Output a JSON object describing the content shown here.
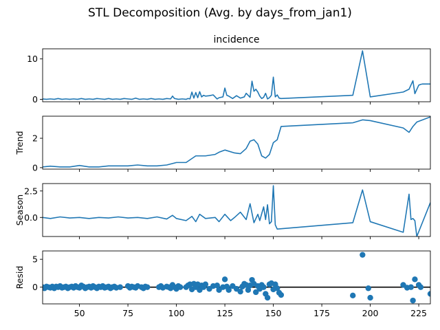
{
  "figure": {
    "suptitle": "STL Decomposition (Avg. by days_from_jan1)"
  },
  "colors": {
    "series": "#1f77b4",
    "axes": "#000000",
    "zero_line": "#000000"
  },
  "chart_data": [
    {
      "type": "line",
      "title": "incidence",
      "ylabel": "",
      "xlim": [
        31,
        231
      ],
      "ylim": [
        -0.6,
        12.5
      ],
      "yticks": [
        0,
        10
      ],
      "series": [
        {
          "x": [
            31,
            33,
            35,
            37,
            39,
            41,
            43,
            45,
            47,
            49,
            51,
            53,
            55,
            57,
            59,
            61,
            63,
            65,
            67,
            69,
            71,
            73,
            75,
            77,
            79,
            81,
            83,
            85,
            87,
            89,
            91,
            93,
            95,
            97,
            98,
            99,
            101,
            103,
            105,
            106,
            107,
            108,
            109,
            110,
            111,
            112,
            113,
            114,
            115,
            117,
            119,
            121,
            122,
            124,
            125,
            126,
            127,
            129,
            131,
            133,
            135,
            136,
            138,
            139,
            140,
            141,
            142,
            143,
            144,
            145,
            146,
            147,
            148,
            149,
            150,
            151,
            152,
            153,
            154,
            191,
            196,
            200,
            217,
            220,
            222,
            223,
            225,
            226,
            227,
            228,
            231
          ],
          "y": [
            0.1,
            0.0,
            0.1,
            0.0,
            0.2,
            0.0,
            0.1,
            0.0,
            0.1,
            0.0,
            0.2,
            0.0,
            0.1,
            0.0,
            0.2,
            0.1,
            0.0,
            0.2,
            0.0,
            0.1,
            0.0,
            0.2,
            0.1,
            0.0,
            0.3,
            0.0,
            0.1,
            0.0,
            0.2,
            0.0,
            0.1,
            0.0,
            0.2,
            0.1,
            0.8,
            0.2,
            0.0,
            0.1,
            0.0,
            0.2,
            0.1,
            1.8,
            0.3,
            1.7,
            0.4,
            1.9,
            0.6,
            1.0,
            0.8,
            0.9,
            1.1,
            0.1,
            0.4,
            0.6,
            2.8,
            1.0,
            0.8,
            0.2,
            0.9,
            0.3,
            0.6,
            1.5,
            0.5,
            4.5,
            2.0,
            2.5,
            1.8,
            0.8,
            0.2,
            0.5,
            1.5,
            0.1,
            0.4,
            1.0,
            5.5,
            0.6,
            1.1,
            0.3,
            0.2,
            1.0,
            12.0,
            0.6,
            1.8,
            2.5,
            4.6,
            1.4,
            3.5,
            3.7,
            3.8,
            3.8,
            3.8
          ]
        }
      ]
    },
    {
      "type": "line",
      "title": "",
      "ylabel": "Trend",
      "xlim": [
        31,
        231
      ],
      "ylim": [
        -0.1,
        3.5
      ],
      "yticks": [
        0,
        2
      ],
      "series": [
        {
          "x": [
            31,
            35,
            40,
            45,
            50,
            55,
            60,
            65,
            70,
            75,
            80,
            85,
            90,
            95,
            100,
            105,
            110,
            115,
            120,
            122,
            125,
            130,
            133,
            136,
            138,
            140,
            142,
            144,
            146,
            148,
            150,
            152,
            154,
            191,
            196,
            200,
            217,
            220,
            222,
            224,
            226,
            231
          ],
          "y": [
            0.05,
            0.1,
            0.05,
            0.05,
            0.15,
            0.05,
            0.05,
            0.12,
            0.12,
            0.12,
            0.18,
            0.12,
            0.12,
            0.18,
            0.35,
            0.35,
            0.8,
            0.8,
            0.9,
            1.05,
            1.2,
            1.0,
            0.95,
            1.3,
            1.8,
            1.9,
            1.6,
            0.8,
            0.65,
            0.9,
            1.7,
            1.9,
            2.8,
            3.05,
            3.25,
            3.2,
            2.7,
            2.4,
            2.8,
            3.1,
            3.2,
            3.45
          ]
        }
      ]
    },
    {
      "type": "line",
      "title": "",
      "ylabel": "Season",
      "xlim": [
        31,
        231
      ],
      "ylim": [
        -1.8,
        3.2
      ],
      "yticks": [
        0.0,
        2.5
      ],
      "series": [
        {
          "x": [
            31,
            35,
            40,
            45,
            50,
            55,
            60,
            65,
            70,
            75,
            80,
            85,
            90,
            95,
            98,
            100,
            105,
            108,
            110,
            112,
            115,
            120,
            122,
            125,
            128,
            130,
            133,
            136,
            138,
            140,
            142,
            143,
            145,
            146,
            147,
            148,
            149,
            150,
            151,
            152,
            191,
            196,
            200,
            217,
            220,
            221,
            222,
            223,
            224,
            231
          ],
          "y": [
            0.0,
            -0.1,
            0.05,
            -0.05,
            0.0,
            -0.1,
            0.0,
            -0.05,
            0.05,
            -0.05,
            0.0,
            -0.1,
            0.05,
            -0.15,
            0.2,
            -0.1,
            -0.3,
            0.1,
            -0.4,
            0.3,
            -0.1,
            0.0,
            -0.4,
            0.3,
            -0.3,
            0.0,
            0.5,
            -0.2,
            1.3,
            -0.5,
            0.3,
            -0.3,
            1.0,
            -0.2,
            1.2,
            -0.6,
            -0.4,
            3.0,
            -0.7,
            -1.1,
            -0.5,
            2.6,
            -0.4,
            -1.4,
            2.2,
            -0.2,
            -0.1,
            -0.3,
            -1.8,
            1.4
          ]
        }
      ]
    },
    {
      "type": "scatter",
      "title": "",
      "ylabel": "Resid",
      "xlim": [
        31,
        231
      ],
      "ylim": [
        -3,
        6.5
      ],
      "yticks": [
        0,
        5
      ],
      "zero_line": true,
      "series": [
        {
          "x": [
            31,
            32,
            33,
            34,
            35,
            36,
            37,
            38,
            39,
            40,
            41,
            42,
            43,
            44,
            45,
            46,
            47,
            48,
            49,
            50,
            51,
            52,
            53,
            54,
            55,
            56,
            57,
            58,
            59,
            60,
            61,
            62,
            63,
            64,
            65,
            66,
            67,
            68,
            69,
            71,
            75,
            76,
            77,
            78,
            79,
            80,
            82,
            83,
            84,
            85,
            91,
            92,
            93,
            95,
            96,
            97,
            98,
            99,
            100,
            101,
            102,
            105,
            106,
            107,
            108,
            109,
            110,
            111,
            112,
            113,
            114,
            115,
            117,
            119,
            121,
            122,
            124,
            125,
            126,
            127,
            129,
            131,
            133,
            134,
            135,
            136,
            137,
            138,
            139,
            140,
            141,
            142,
            143,
            144,
            145,
            146,
            147,
            148,
            149,
            150,
            151,
            152,
            153,
            154,
            191,
            196,
            199,
            200,
            217,
            219,
            221,
            222,
            223,
            225,
            226,
            231
          ],
          "y": [
            0.0,
            -0.2,
            0.1,
            0.0,
            -0.1,
            0.1,
            -0.2,
            0.1,
            0.0,
            0.2,
            -0.1,
            0.0,
            0.1,
            -0.2,
            0.0,
            0.1,
            -0.1,
            0.2,
            0.0,
            -0.1,
            0.3,
            0.1,
            -0.2,
            0.0,
            0.1,
            -0.1,
            0.2,
            0.0,
            -0.2,
            0.1,
            0.0,
            0.2,
            -0.1,
            0.0,
            0.1,
            -0.2,
            0.0,
            0.1,
            -0.1,
            0.0,
            0.2,
            -0.1,
            0.1,
            0.0,
            -0.1,
            0.2,
            0.0,
            -0.2,
            0.1,
            0.0,
            0.0,
            0.2,
            -0.1,
            0.1,
            0.0,
            -0.2,
            0.4,
            0.0,
            -0.3,
            0.2,
            0.0,
            0.0,
            0.3,
            0.5,
            -0.4,
            0.6,
            0.0,
            0.5,
            -0.5,
            0.3,
            0.0,
            0.5,
            -0.3,
            0.2,
            0.3,
            -0.5,
            0.0,
            1.4,
            0.1,
            -0.5,
            0.2,
            -0.3,
            -0.8,
            0.1,
            0.6,
            0.4,
            -0.5,
            0.3,
            1.3,
            0.6,
            -0.9,
            0.2,
            -0.3,
            0.4,
            0.0,
            -1.2,
            -1.9,
            0.5,
            0.7,
            -0.4,
            0.5,
            -0.2,
            -1.0,
            -1.4,
            -1.5,
            5.8,
            -0.2,
            -1.9,
            0.4,
            -0.1,
            0.0,
            -2.4,
            1.4,
            0.4,
            0.0,
            -1.2
          ]
        }
      ]
    }
  ],
  "xticks": [
    50,
    75,
    100,
    125,
    150,
    175,
    200,
    225
  ]
}
